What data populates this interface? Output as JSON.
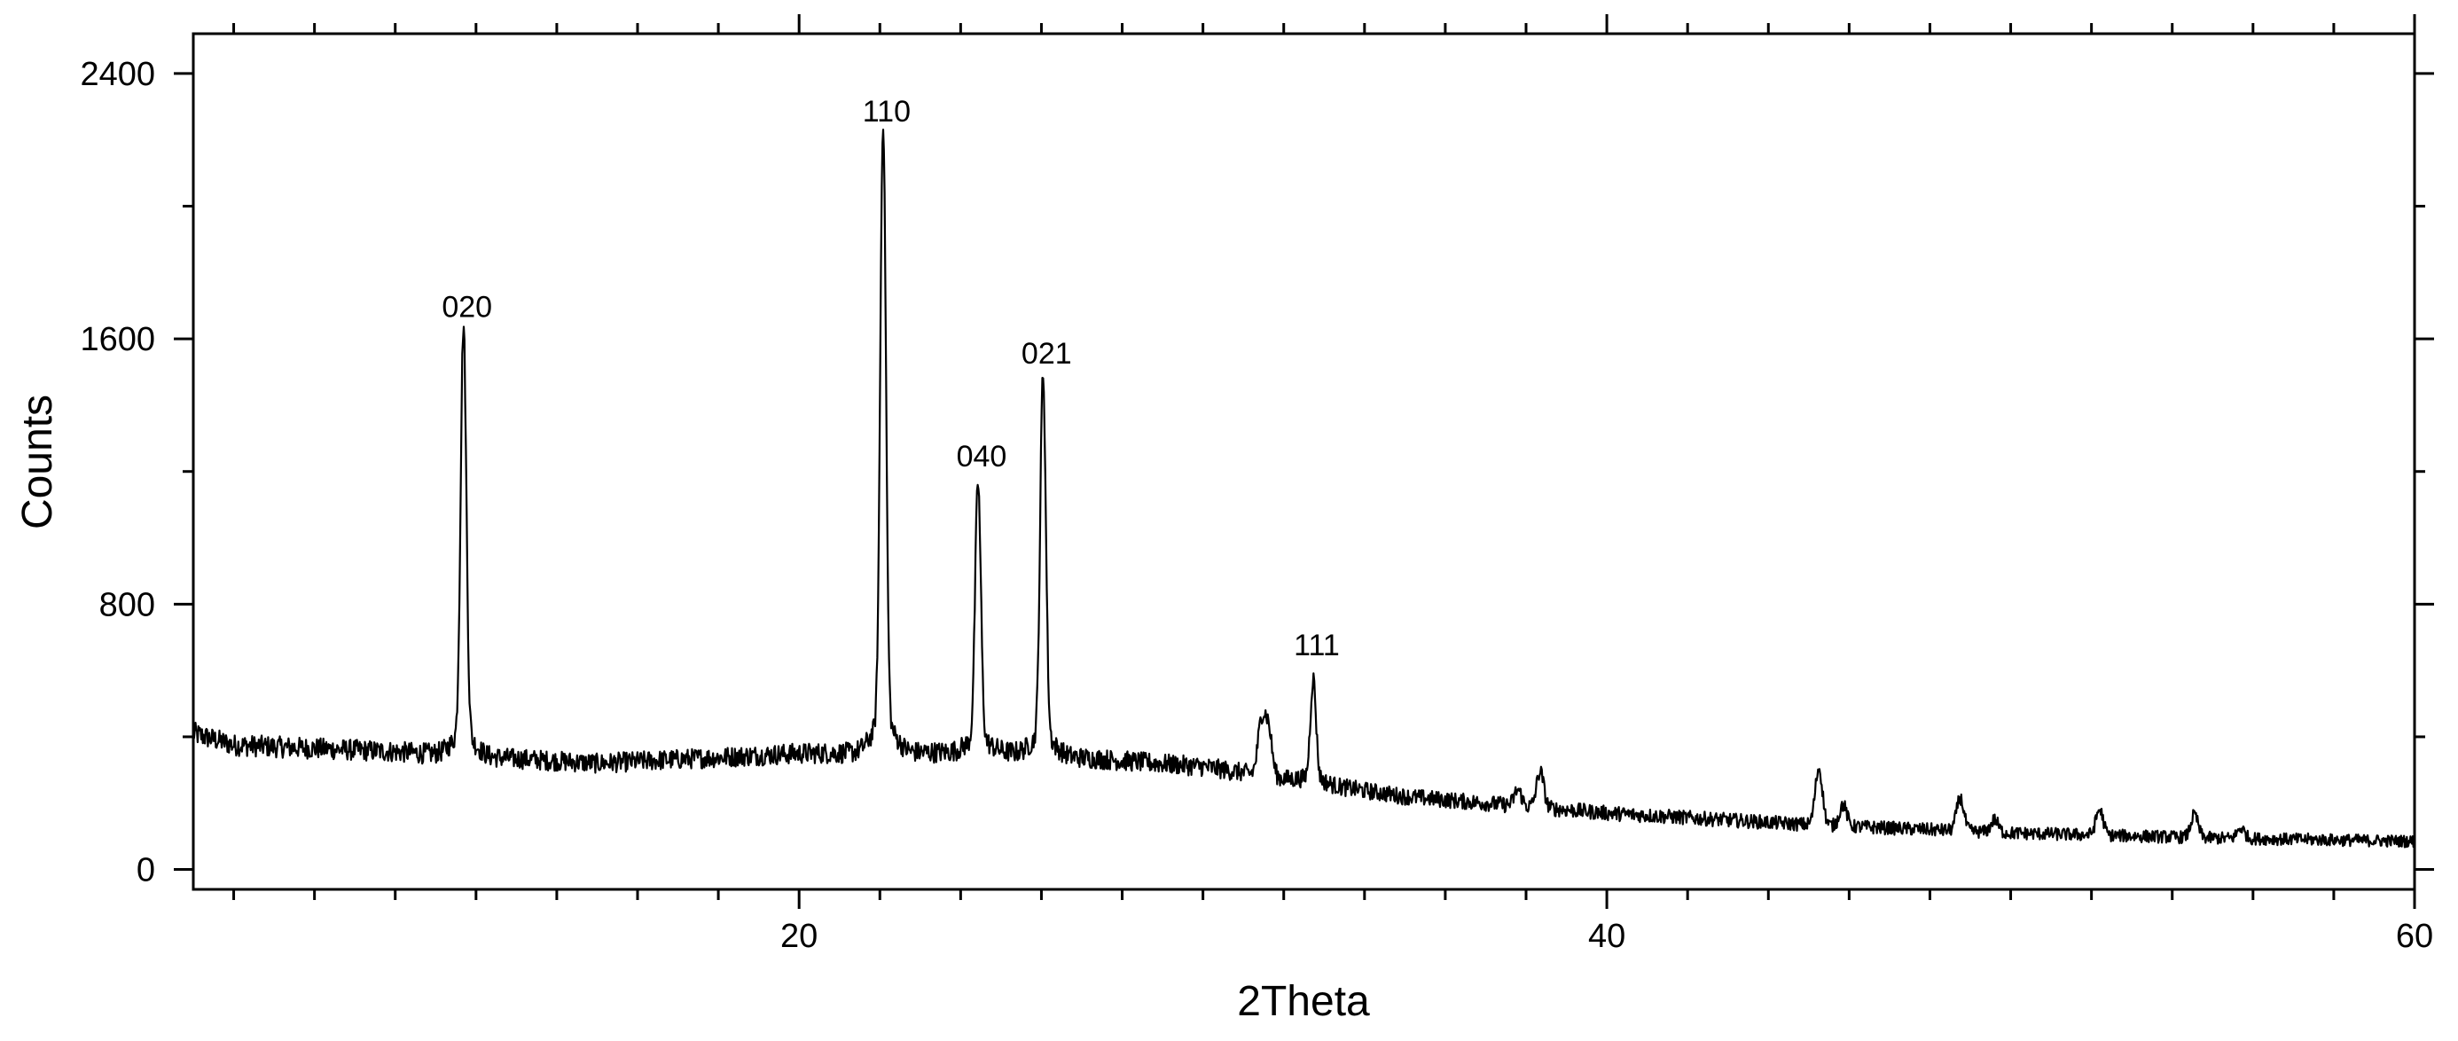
{
  "chart_data": {
    "type": "line",
    "xlabel": "2Theta",
    "ylabel": "Counts",
    "xlim": [
      5,
      60
    ],
    "ylim": [
      -60,
      2520
    ],
    "xticks": [
      20,
      40,
      60
    ],
    "xminor_step": 2,
    "yticks": [
      0,
      800,
      1600,
      2400
    ],
    "yminor_step": 400,
    "grid": false,
    "legend": "none",
    "line_color": "#000000",
    "baseline": [
      [
        5,
        410
      ],
      [
        6,
        375
      ],
      [
        10,
        355
      ],
      [
        15,
        320
      ],
      [
        20,
        350
      ],
      [
        25,
        355
      ],
      [
        30,
        310
      ],
      [
        35,
        220
      ],
      [
        40,
        170
      ],
      [
        45,
        135
      ],
      [
        50,
        110
      ],
      [
        55,
        95
      ],
      [
        60,
        85
      ]
    ],
    "peaks": [
      {
        "x": 11.69,
        "y": 1580,
        "label": "020"
      },
      {
        "x": 22.08,
        "y": 2170,
        "label": "110"
      },
      {
        "x": 24.43,
        "y": 1130,
        "label": "040"
      },
      {
        "x": 26.04,
        "y": 1440,
        "label": "021"
      },
      {
        "x": 32.73,
        "y": 560,
        "label": "111"
      }
    ],
    "minor_peaks": [
      {
        "x": 31.45,
        "y": 440
      },
      {
        "x": 31.62,
        "y": 420
      },
      {
        "x": 37.8,
        "y": 240
      },
      {
        "x": 38.35,
        "y": 295
      },
      {
        "x": 45.25,
        "y": 305
      },
      {
        "x": 45.85,
        "y": 195
      },
      {
        "x": 48.75,
        "y": 215
      },
      {
        "x": 49.6,
        "y": 150
      },
      {
        "x": 52.2,
        "y": 180
      },
      {
        "x": 54.55,
        "y": 165
      },
      {
        "x": 55.7,
        "y": 125
      }
    ]
  }
}
